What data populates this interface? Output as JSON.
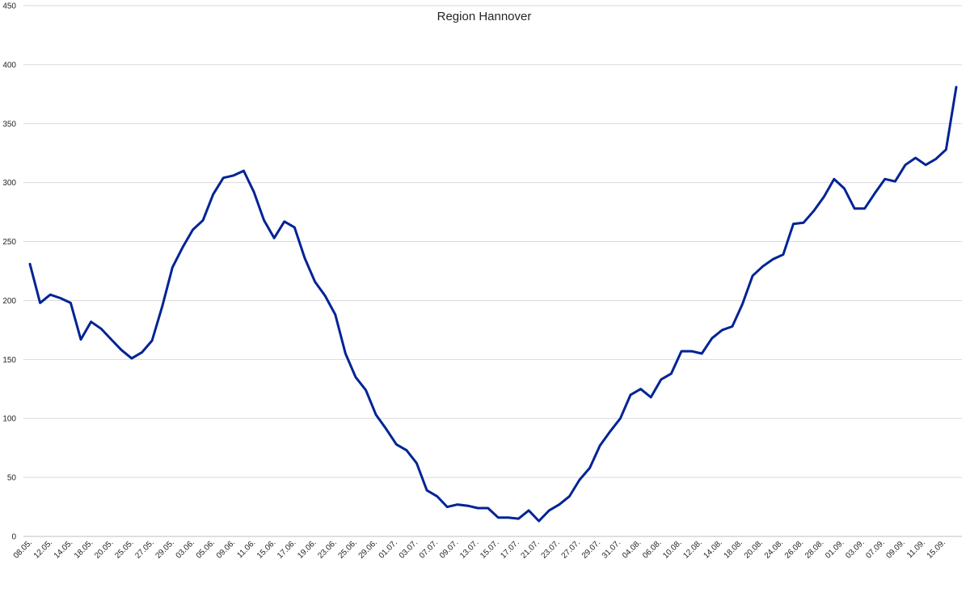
{
  "chart_data": {
    "type": "line",
    "title": "Region Hannover",
    "xlabel": "",
    "ylabel": "",
    "ylim": [
      0,
      450
    ],
    "yticks": [
      0,
      50,
      100,
      150,
      200,
      250,
      300,
      350,
      400,
      450
    ],
    "grid": true,
    "legend": "none",
    "colors": {
      "series": "#002395",
      "grid": "#d9d9d9"
    },
    "xtick_labels": [
      "08.05.",
      "12.05.",
      "14.05.",
      "18.05.",
      "20.05.",
      "25.05.",
      "27.05.",
      "29.05.",
      "03.06.",
      "05.06.",
      "09.06.",
      "11.06.",
      "15.06.",
      "17.06.",
      "19.06.",
      "23.06.",
      "25.06.",
      "29.06.",
      "01.07.",
      "03.07.",
      "07.07.",
      "09.07.",
      "13.07.",
      "15.07.",
      "17.07.",
      "21.07.",
      "23.07.",
      "27.07.",
      "29.07.",
      "31.07.",
      "04.08.",
      "06.08.",
      "10.08.",
      "12.08.",
      "14.08.",
      "18.08.",
      "20.08.",
      "24.08.",
      "26.08.",
      "28.08.",
      "01.09.",
      "03.09.",
      "07.09.",
      "09.09.",
      "11.09.",
      "15.09."
    ],
    "series": [
      {
        "values": [
          231,
          198,
          205,
          202,
          198,
          167,
          182,
          176,
          167,
          158,
          151,
          156,
          166,
          195,
          228,
          245,
          260,
          268,
          290,
          304,
          306,
          310,
          292,
          268,
          253,
          267,
          262,
          236,
          216,
          204,
          188,
          155,
          135,
          124,
          103,
          91,
          78,
          73,
          62,
          39,
          34,
          25,
          27,
          26,
          24,
          24,
          16,
          16,
          15,
          22,
          13,
          22,
          27,
          34,
          48,
          58,
          77,
          89,
          100,
          120,
          125,
          118,
          133,
          138,
          157,
          157,
          155,
          168,
          175,
          178,
          197,
          221,
          229,
          235,
          239,
          265,
          266,
          276,
          288,
          303,
          295,
          278,
          278,
          291,
          303,
          301,
          315,
          321,
          315,
          320,
          328,
          381
        ]
      }
    ]
  }
}
